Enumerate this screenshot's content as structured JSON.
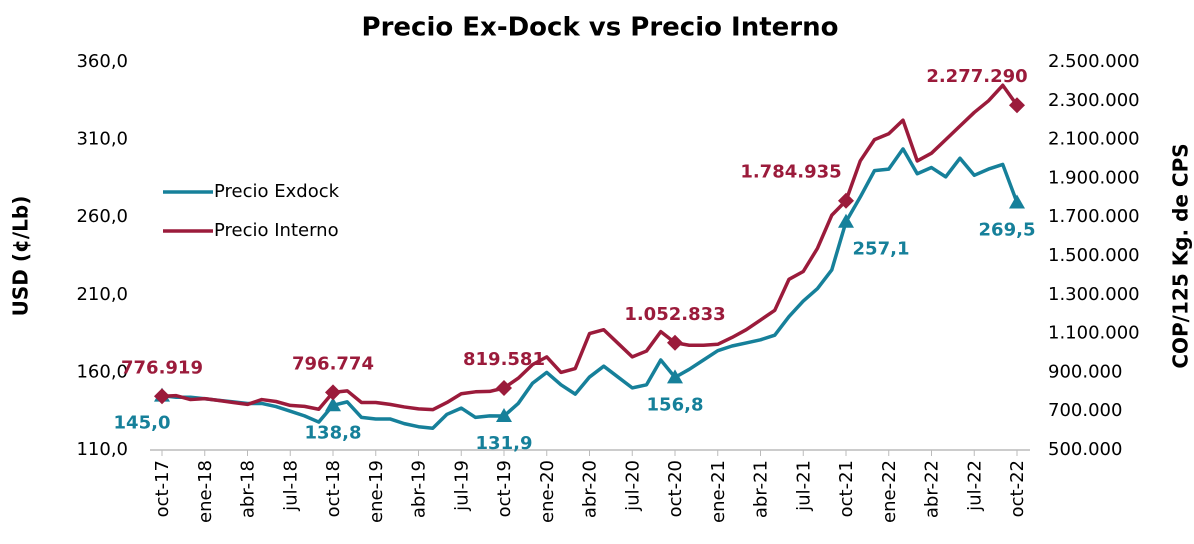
{
  "chart_data": {
    "type": "line",
    "title": "Precio Ex-Dock vs Precio Interno",
    "ylabel": "USD (¢/Lb)",
    "y2label": "COP/125 Kg. de CPS",
    "categories": [
      "oct-17",
      null,
      null,
      "ene-18",
      null,
      null,
      "abr-18",
      null,
      null,
      "jul-18",
      null,
      null,
      "oct-18",
      null,
      null,
      "ene-19",
      null,
      null,
      "abr-19",
      null,
      null,
      "jul-19",
      null,
      null,
      "oct-19",
      null,
      null,
      "ene-20",
      null,
      null,
      "abr-20",
      null,
      null,
      "jul-20",
      null,
      null,
      "oct-20",
      null,
      null,
      "ene-21",
      null,
      null,
      "abr-21",
      null,
      null,
      "jul-21",
      null,
      null,
      "oct-21",
      null,
      null,
      "ene-22",
      null,
      null,
      "abr-22",
      null,
      null,
      "jul-22",
      null,
      null,
      "oct-22"
    ],
    "ylim": [
      110,
      360
    ],
    "yticks": [
      {
        "value": 110,
        "label": "110,0"
      },
      {
        "value": 160,
        "label": "160,0"
      },
      {
        "value": 210,
        "label": "210,0"
      },
      {
        "value": 260,
        "label": "260,0"
      },
      {
        "value": 310,
        "label": "310,0"
      },
      {
        "value": 360,
        "label": "360,0"
      }
    ],
    "y2lim": [
      500000,
      2500000
    ],
    "y2ticks": [
      {
        "value": 500000,
        "label": "500.000"
      },
      {
        "value": 700000,
        "label": "700.000"
      },
      {
        "value": 900000,
        "label": "900.000"
      },
      {
        "value": 1100000,
        "label": "1.100.000"
      },
      {
        "value": 1300000,
        "label": "1.300.000"
      },
      {
        "value": 1500000,
        "label": "1.500.000"
      },
      {
        "value": 1700000,
        "label": "1.700.000"
      },
      {
        "value": 1900000,
        "label": "1.900.000"
      },
      {
        "value": 2100000,
        "label": "2.100.000"
      },
      {
        "value": 2300000,
        "label": "2.300.000"
      },
      {
        "value": 2500000,
        "label": "2.500.000"
      }
    ],
    "legend": "upper left",
    "series": [
      {
        "name": "Precio Exdock",
        "color": "#16809a",
        "values": [
          145.0,
          144,
          144,
          143,
          142,
          141,
          140,
          140,
          138,
          135,
          132,
          128,
          138.8,
          141,
          131,
          130,
          130,
          127,
          125,
          124,
          133,
          137,
          131,
          132,
          131.9,
          140,
          153,
          160,
          152,
          146,
          157,
          164,
          157,
          150,
          152,
          168,
          156.8,
          162,
          168,
          174,
          177,
          179,
          181,
          184,
          196,
          206,
          214,
          226,
          257.1,
          273,
          290,
          291,
          304,
          288,
          292,
          286,
          298,
          287,
          291,
          294,
          269.5
        ],
        "value_labels": [
          "145,0",
          null,
          null,
          null,
          null,
          null,
          null,
          null,
          null,
          null,
          null,
          null,
          "138,8",
          null,
          null,
          null,
          null,
          null,
          null,
          null,
          null,
          null,
          null,
          null,
          "131,9",
          null,
          null,
          null,
          null,
          null,
          null,
          null,
          null,
          null,
          null,
          null,
          "156,8",
          null,
          null,
          null,
          null,
          null,
          null,
          null,
          null,
          null,
          null,
          null,
          "257,1",
          null,
          null,
          null,
          null,
          null,
          null,
          null,
          null,
          null,
          null,
          null,
          "269,5"
        ]
      },
      {
        "name": "Precio Interno",
        "color": "#9b1b3b",
        "axis": "y2",
        "values": [
          776919,
          780000,
          760000,
          765000,
          755000,
          745000,
          735000,
          760000,
          750000,
          730000,
          725000,
          710000,
          796774,
          805000,
          745000,
          745000,
          735000,
          722000,
          712000,
          708000,
          745000,
          790000,
          800000,
          802000,
          819581,
          870000,
          940000,
          980000,
          900000,
          920000,
          1100000,
          1120000,
          1050000,
          980000,
          1010000,
          1110000,
          1052833,
          1040000,
          1040000,
          1045000,
          1080000,
          1120000,
          1170000,
          1220000,
          1380000,
          1420000,
          1540000,
          1710000,
          1784935,
          1990000,
          2100000,
          2130000,
          2200000,
          1990000,
          2030000,
          2100000,
          2170000,
          2240000,
          2300000,
          2380000,
          2277290
        ],
        "value_labels": [
          "776.919",
          null,
          null,
          null,
          null,
          null,
          null,
          null,
          null,
          null,
          null,
          null,
          "796.774",
          null,
          null,
          null,
          null,
          null,
          null,
          null,
          null,
          null,
          null,
          null,
          "819.581",
          null,
          null,
          null,
          null,
          null,
          null,
          null,
          null,
          null,
          null,
          null,
          "1.052.833",
          null,
          null,
          null,
          null,
          null,
          null,
          null,
          null,
          null,
          null,
          null,
          "1.784.935",
          null,
          null,
          null,
          null,
          null,
          null,
          null,
          null,
          null,
          null,
          null,
          "2.277.290"
        ]
      }
    ]
  }
}
